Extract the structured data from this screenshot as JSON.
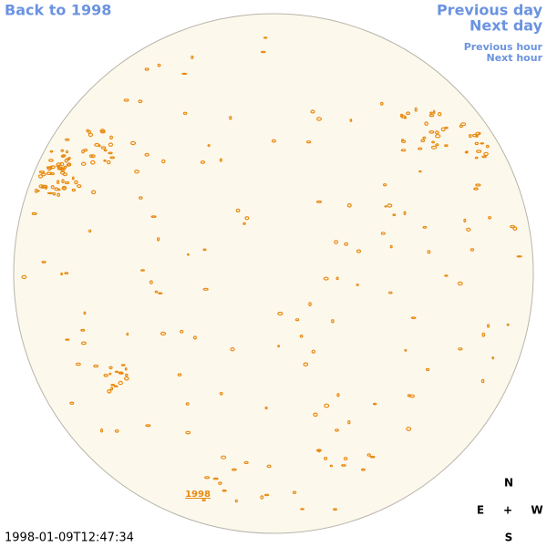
{
  "nav": {
    "back": "Back to 1998",
    "previous_day": "Previous day",
    "next_day": "Next day",
    "previous_hour": "Previous hour",
    "next_hour": "Next hour"
  },
  "disk_link": "1998",
  "timestamp": "1998-01-09T12:47:34",
  "compass": {
    "north": "N",
    "east": "E",
    "center": "+",
    "west": "W",
    "south": "S"
  }
}
